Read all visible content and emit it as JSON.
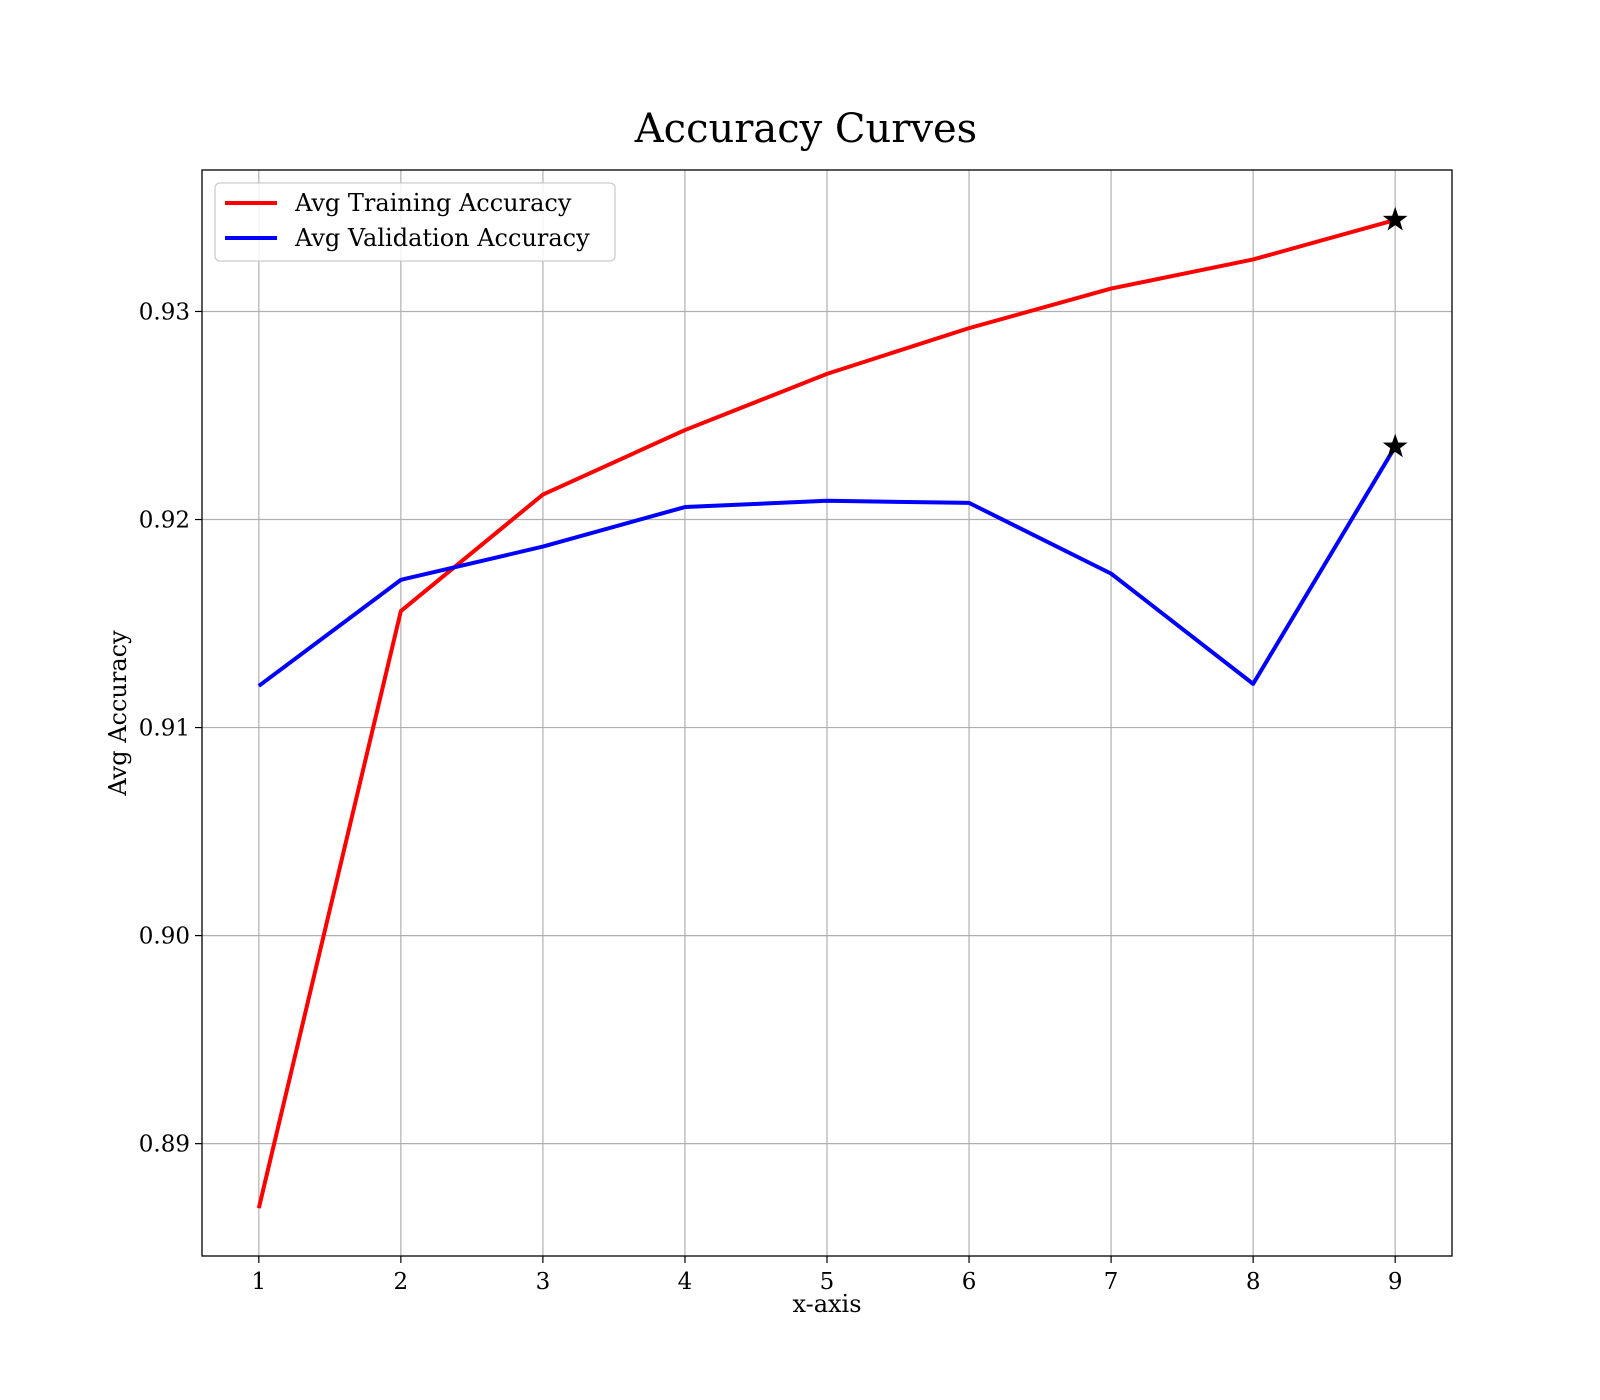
{
  "chart_data": {
    "type": "line",
    "title": "Accuracy Curves",
    "xlabel": "x-axis",
    "ylabel": "Avg Accuracy",
    "x": [
      1,
      2,
      3,
      4,
      5,
      6,
      7,
      8,
      9
    ],
    "xlim": [
      0.6,
      9.4
    ],
    "ylim": [
      0.8846,
      0.9368
    ],
    "xticks": [
      1,
      2,
      3,
      4,
      5,
      6,
      7,
      8,
      9
    ],
    "yticks": [
      0.89,
      0.9,
      0.91,
      0.92,
      0.93
    ],
    "ytick_labels": [
      "0.89",
      "0.90",
      "0.91",
      "0.92",
      "0.93"
    ],
    "grid": true,
    "legend_position": "upper-left",
    "series": [
      {
        "name": "Avg Training Accuracy",
        "color": "#ff0000",
        "values": [
          0.8869,
          0.9156,
          0.9212,
          0.9243,
          0.927,
          0.9292,
          0.9311,
          0.9325,
          0.9344
        ]
      },
      {
        "name": "Avg Validation Accuracy",
        "color": "#0000ff",
        "values": [
          0.912,
          0.9171,
          0.9187,
          0.9206,
          0.9209,
          0.9208,
          0.9174,
          0.9121,
          0.9235
        ]
      }
    ],
    "markers": [
      {
        "series": "Avg Training Accuracy",
        "x": 9,
        "y": 0.9344,
        "symbol": "star"
      },
      {
        "series": "Avg Validation Accuracy",
        "x": 9,
        "y": 0.9235,
        "symbol": "star"
      }
    ]
  }
}
